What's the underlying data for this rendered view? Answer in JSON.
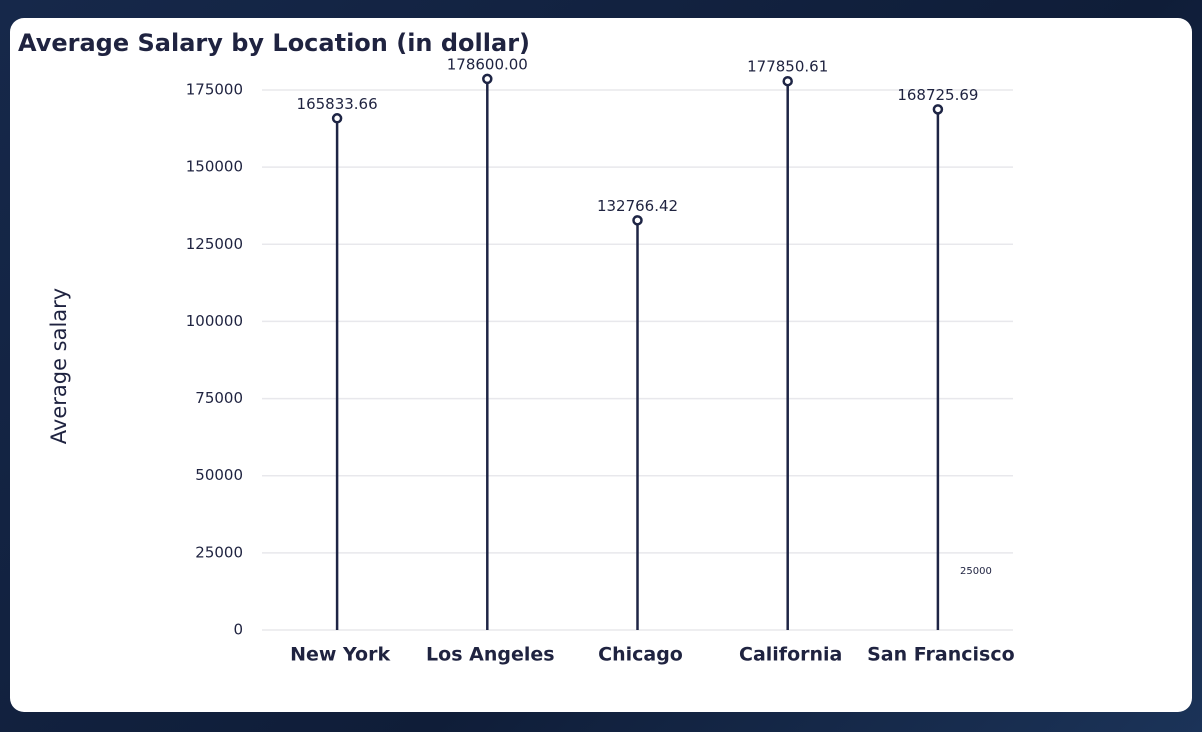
{
  "chart_data": {
    "type": "lollipop",
    "title": "Average Salary by Location (in dollar)",
    "y_label": "Average salary",
    "categories": [
      "New York",
      "Los Angeles",
      "Chicago",
      "California",
      "San Francisco"
    ],
    "values": [
      165833.66,
      178600,
      132766.42,
      177850.61,
      168725.69
    ],
    "value_labels": [
      "165833.66",
      "178600.00",
      "132766.42",
      "177850.61",
      "168725.69"
    ],
    "color": "#1e2545",
    "ylim": [
      0,
      175000
    ],
    "yticks": [
      0,
      25000,
      50000,
      75000,
      100000,
      125000,
      150000,
      175000
    ],
    "grid": true,
    "annotation": "25000"
  }
}
